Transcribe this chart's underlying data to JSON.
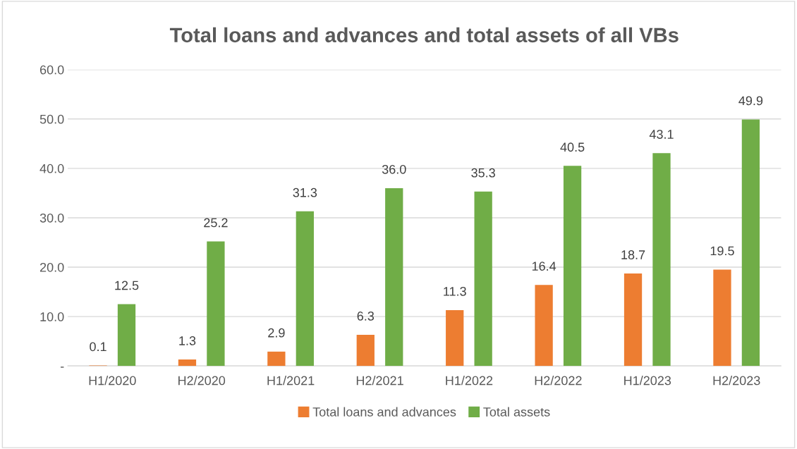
{
  "chart_data": {
    "type": "bar",
    "title": "Total loans and advances and total assets of all VBs",
    "categories": [
      "H1/2020",
      "H2/2020",
      "H1/2021",
      "H2/2021",
      "H1/2022",
      "H2/2022",
      "H1/2023",
      "H2/2023"
    ],
    "series": [
      {
        "name": "Total loans and advances",
        "color": "#ed7d31",
        "values": [
          0.1,
          1.3,
          2.9,
          6.3,
          11.3,
          16.4,
          18.7,
          19.5
        ],
        "value_labels": [
          "0.1",
          "1.3",
          "2.9",
          "6.3",
          "11.3",
          "16.4",
          "18.7",
          "19.5"
        ]
      },
      {
        "name": "Total assets",
        "color": "#70ad47",
        "values": [
          12.5,
          25.2,
          31.3,
          36.0,
          35.3,
          40.5,
          43.1,
          49.9
        ],
        "value_labels": [
          "12.5",
          "25.2",
          "31.3",
          "36.0",
          "35.3",
          "40.5",
          "43.1",
          "49.9"
        ]
      }
    ],
    "ylim": [
      0,
      60
    ],
    "yticks": [
      {
        "value": 0,
        "label": "-"
      },
      {
        "value": 10,
        "label": "10.0"
      },
      {
        "value": 20,
        "label": "20.0"
      },
      {
        "value": 30,
        "label": "30.0"
      },
      {
        "value": 40,
        "label": "40.0"
      },
      {
        "value": 50,
        "label": "50.0"
      },
      {
        "value": 60,
        "label": "60.0"
      }
    ],
    "grid": "y",
    "legend": "bottom"
  }
}
